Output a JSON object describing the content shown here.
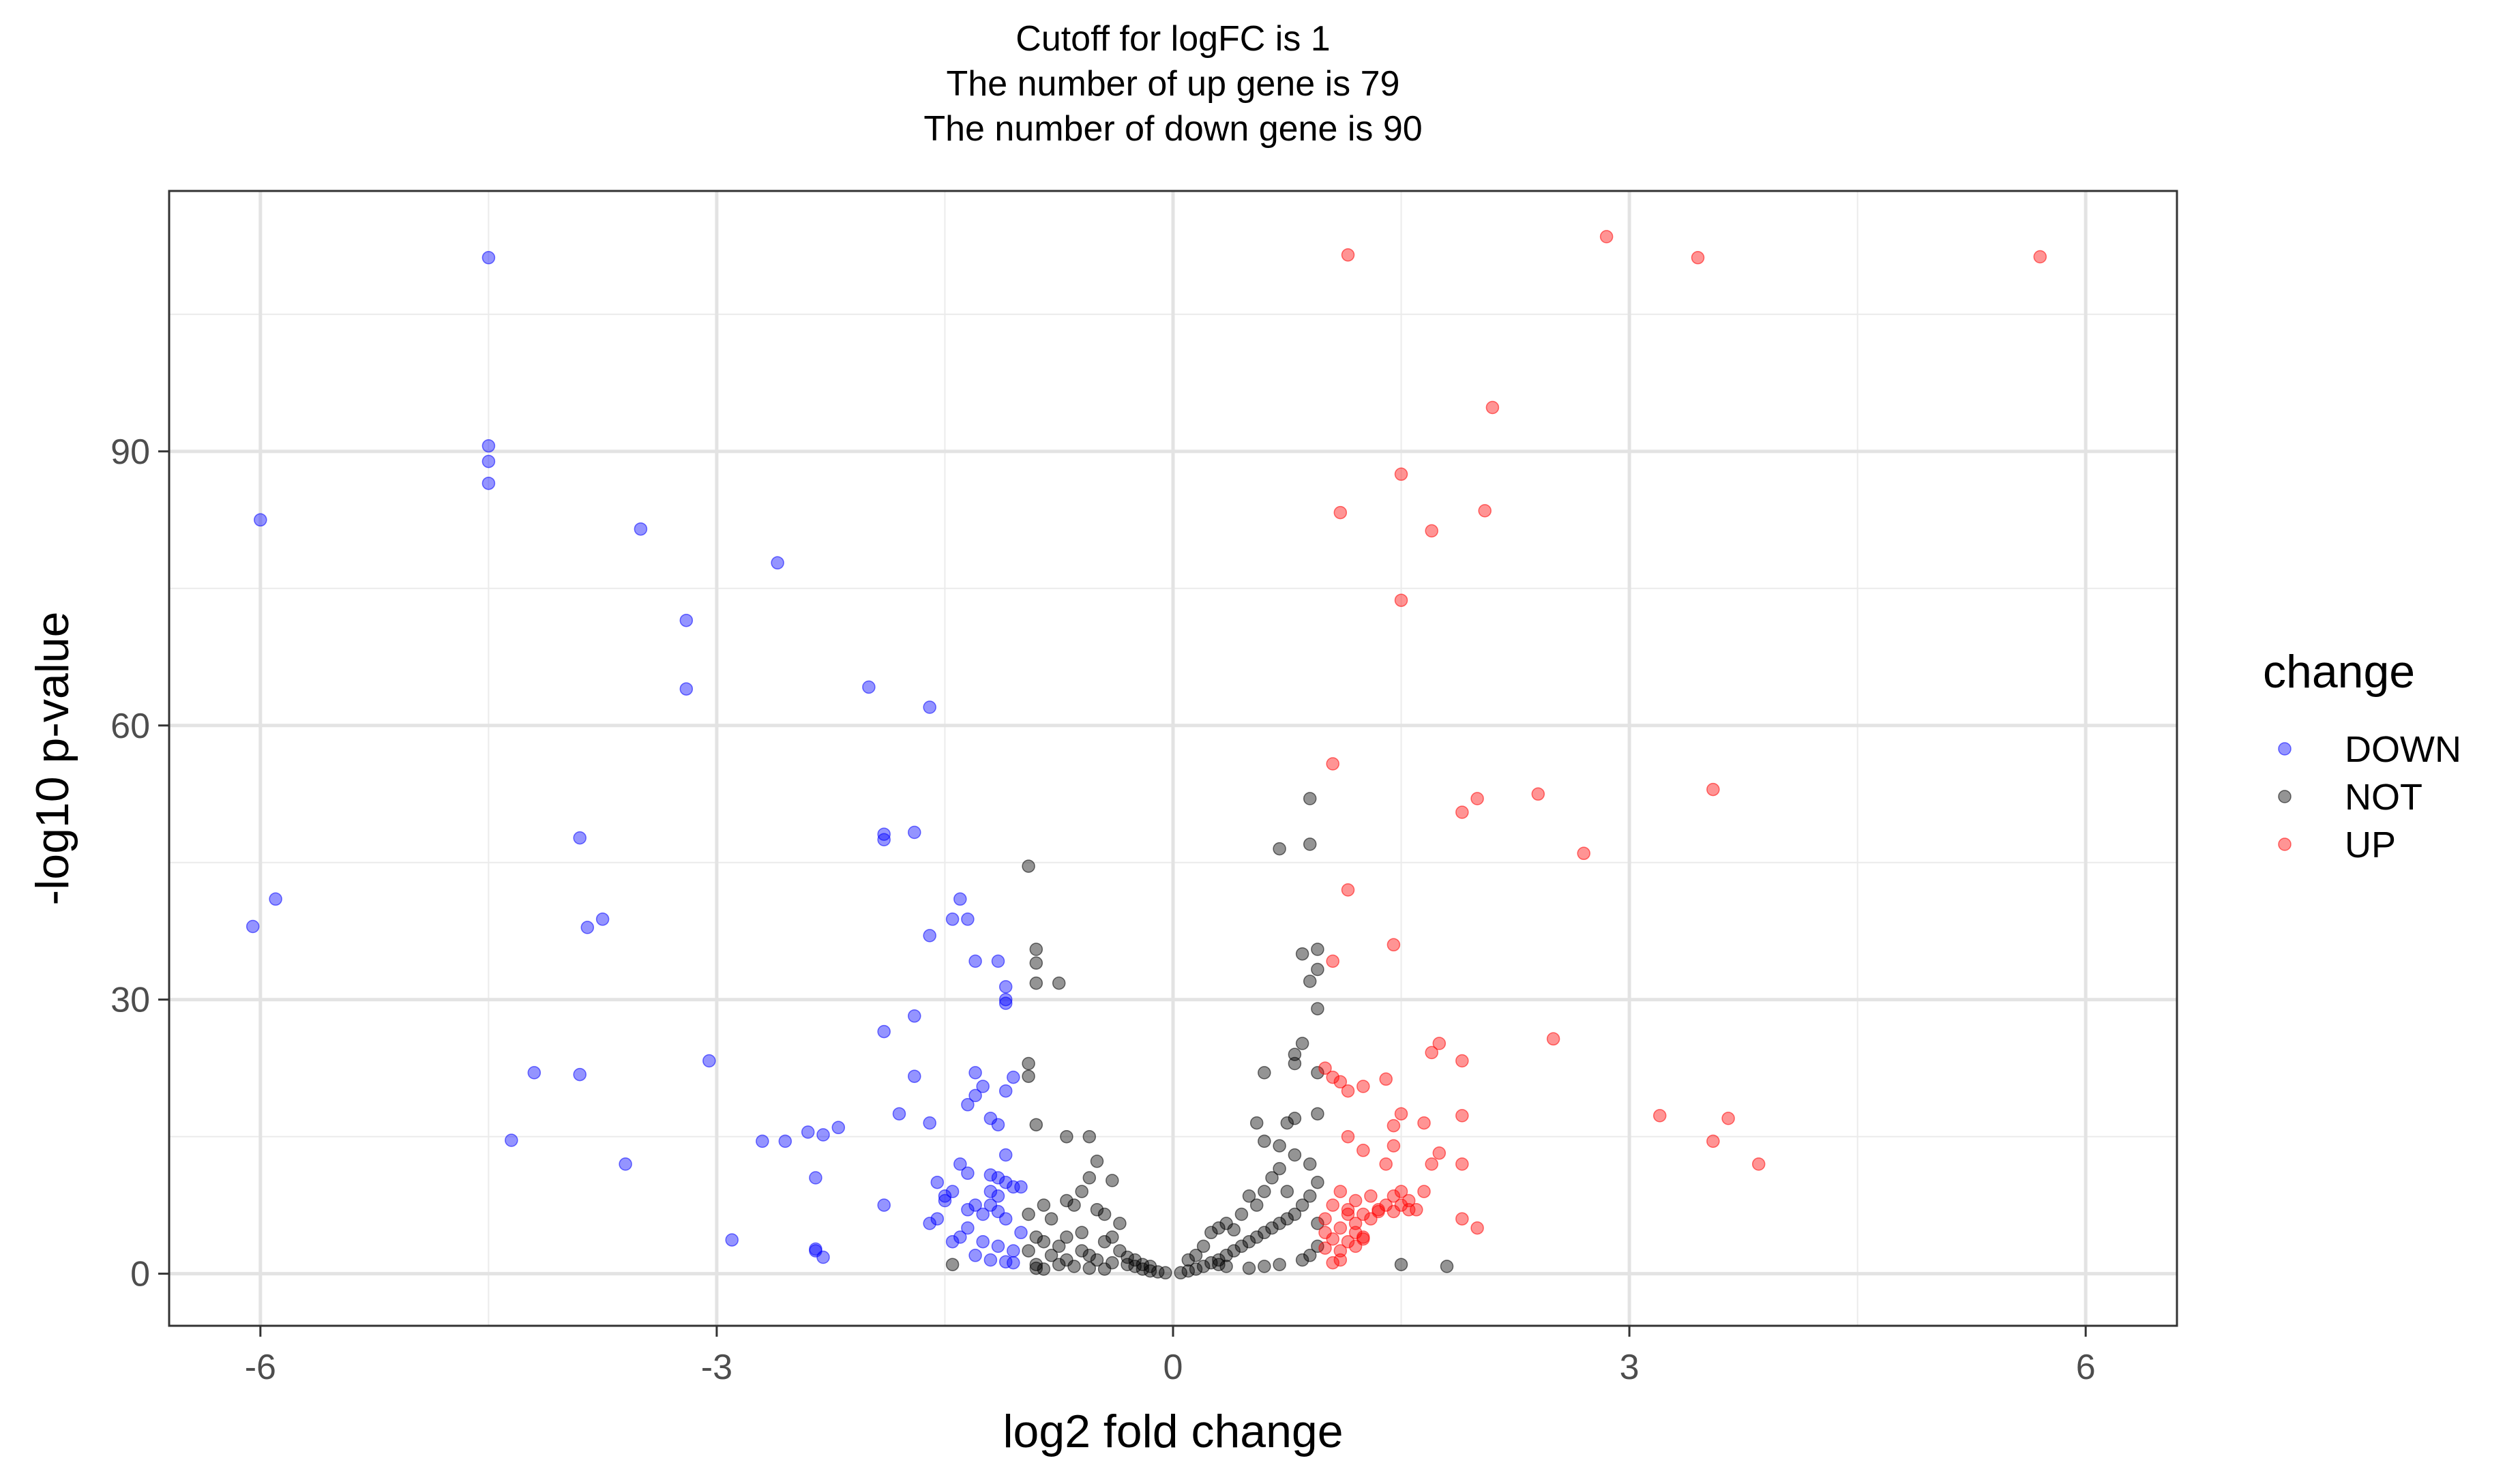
{
  "chart_data": {
    "type": "scatter",
    "title_lines": [
      "Cutoff for logFC is 1",
      "The number of up gene is 79",
      "The number of down gene is 90"
    ],
    "xlabel": "log2 fold change",
    "ylabel": "-log10 p-value",
    "xlim": [
      -6.6,
      6.6
    ],
    "ylim": [
      -5.7,
      118.5
    ],
    "xticks": [
      -6,
      -3,
      0,
      3,
      6
    ],
    "xtick_labels": [
      "-6",
      "-3",
      "0",
      "3",
      "6"
    ],
    "yticks": [
      0,
      30,
      60,
      90
    ],
    "ytick_labels": [
      "0",
      "30",
      "60",
      "90"
    ],
    "grid": true,
    "legend": {
      "title": "change",
      "position": "right",
      "entries": [
        "DOWN",
        "NOT",
        "UP"
      ]
    },
    "colors": {
      "DOWN": "#0000ff",
      "NOT": "#000000",
      "UP": "#ff0000"
    },
    "series": [
      {
        "name": "DOWN",
        "points": [
          [
            -4.5,
            111.2
          ],
          [
            -4.5,
            90.6
          ],
          [
            -4.5,
            88.9
          ],
          [
            -4.5,
            86.5
          ],
          [
            -6.0,
            82.5
          ],
          [
            -3.5,
            81.5
          ],
          [
            -2.6,
            77.8
          ],
          [
            -3.2,
            71.5
          ],
          [
            -3.2,
            64.0
          ],
          [
            -2.0,
            64.2
          ],
          [
            -1.6,
            62.0
          ],
          [
            -1.9,
            48.1
          ],
          [
            -1.9,
            47.5
          ],
          [
            -1.7,
            48.3
          ],
          [
            -3.9,
            47.7
          ],
          [
            -5.9,
            41.0
          ],
          [
            -6.05,
            38.0
          ],
          [
            -3.75,
            38.8
          ],
          [
            -3.85,
            37.9
          ],
          [
            -1.4,
            41.0
          ],
          [
            -1.45,
            38.8
          ],
          [
            -1.35,
            38.8
          ],
          [
            -1.6,
            37.0
          ],
          [
            -1.3,
            34.2
          ],
          [
            -1.15,
            34.2
          ],
          [
            -1.1,
            31.4
          ],
          [
            -1.1,
            30.0
          ],
          [
            -1.1,
            29.6
          ],
          [
            -1.7,
            28.2
          ],
          [
            -1.9,
            26.5
          ],
          [
            -3.05,
            23.3
          ],
          [
            -4.2,
            22.0
          ],
          [
            -3.9,
            21.8
          ],
          [
            -1.3,
            22.0
          ],
          [
            -1.7,
            21.6
          ],
          [
            -1.25,
            20.5
          ],
          [
            -1.05,
            21.5
          ],
          [
            -1.1,
            20.0
          ],
          [
            -1.3,
            19.5
          ],
          [
            -1.35,
            18.5
          ],
          [
            -1.2,
            17.0
          ],
          [
            -1.15,
            16.3
          ],
          [
            -1.6,
            16.5
          ],
          [
            -1.8,
            17.5
          ],
          [
            -2.2,
            16.0
          ],
          [
            -2.3,
            15.2
          ],
          [
            -2.4,
            15.5
          ],
          [
            -2.55,
            14.5
          ],
          [
            -2.7,
            14.5
          ],
          [
            -4.35,
            14.6
          ],
          [
            -3.6,
            12.0
          ],
          [
            -2.35,
            10.5
          ],
          [
            -1.55,
            10.0
          ],
          [
            -1.45,
            9.0
          ],
          [
            -1.5,
            8.0
          ],
          [
            -1.35,
            11.0
          ],
          [
            -1.2,
            10.8
          ],
          [
            -1.15,
            10.5
          ],
          [
            -1.1,
            10.0
          ],
          [
            -1.05,
            9.5
          ],
          [
            -1.0,
            9.5
          ],
          [
            -1.15,
            8.5
          ],
          [
            -1.2,
            7.5
          ],
          [
            -1.15,
            6.8
          ],
          [
            -1.1,
            6.0
          ],
          [
            -1.3,
            7.5
          ],
          [
            -1.25,
            6.5
          ],
          [
            -1.9,
            7.5
          ],
          [
            -1.55,
            6.0
          ],
          [
            -1.6,
            5.5
          ],
          [
            -1.4,
            4.0
          ],
          [
            -1.25,
            3.5
          ],
          [
            -1.15,
            3.0
          ],
          [
            -1.05,
            2.5
          ],
          [
            -1.3,
            2.0
          ],
          [
            -1.2,
            1.5
          ],
          [
            -1.1,
            1.3
          ],
          [
            -2.3,
            1.8
          ],
          [
            -2.35,
            2.5
          ],
          [
            -2.35,
            2.7
          ],
          [
            -2.9,
            3.7
          ],
          [
            -1.0,
            4.5
          ],
          [
            -1.35,
            5.0
          ],
          [
            -1.45,
            3.5
          ],
          [
            -1.05,
            1.2
          ],
          [
            -1.1,
            13.0
          ],
          [
            -1.4,
            12.0
          ],
          [
            -1.5,
            8.5
          ],
          [
            -1.2,
            9.0
          ],
          [
            -1.35,
            7.0
          ]
        ]
      },
      {
        "name": "NOT",
        "points": [
          [
            -0.95,
            44.6
          ],
          [
            -0.9,
            35.5
          ],
          [
            -0.9,
            34.0
          ],
          [
            -0.9,
            31.8
          ],
          [
            -0.75,
            31.8
          ],
          [
            -0.95,
            23.0
          ],
          [
            -0.95,
            21.6
          ],
          [
            -0.9,
            16.3
          ],
          [
            -0.7,
            15.0
          ],
          [
            -0.55,
            15.0
          ],
          [
            -0.5,
            12.3
          ],
          [
            -0.55,
            10.5
          ],
          [
            -0.4,
            10.2
          ],
          [
            -0.6,
            9.0
          ],
          [
            -0.7,
            8.0
          ],
          [
            -0.85,
            7.5
          ],
          [
            -0.95,
            6.5
          ],
          [
            -0.8,
            6.0
          ],
          [
            -0.65,
            7.5
          ],
          [
            -0.5,
            7.0
          ],
          [
            -0.45,
            6.5
          ],
          [
            -0.35,
            5.5
          ],
          [
            -0.9,
            4.0
          ],
          [
            -0.85,
            3.5
          ],
          [
            -0.75,
            3.0
          ],
          [
            -0.6,
            2.5
          ],
          [
            -0.55,
            2.0
          ],
          [
            -0.5,
            1.5
          ],
          [
            -0.4,
            1.2
          ],
          [
            -0.3,
            1.0
          ],
          [
            -0.25,
            0.8
          ],
          [
            -0.2,
            0.5
          ],
          [
            -0.15,
            0.3
          ],
          [
            -0.1,
            0.2
          ],
          [
            -0.05,
            0.1
          ],
          [
            -0.7,
            1.5
          ],
          [
            -0.8,
            2.0
          ],
          [
            -0.9,
            1.0
          ],
          [
            -0.95,
            2.5
          ],
          [
            -0.45,
            3.5
          ],
          [
            -0.35,
            2.5
          ],
          [
            -0.3,
            1.8
          ],
          [
            -0.25,
            1.5
          ],
          [
            -0.2,
            1.0
          ],
          [
            -0.15,
            0.8
          ],
          [
            -0.6,
            4.5
          ],
          [
            -0.7,
            4.0
          ],
          [
            -0.4,
            4.0
          ],
          [
            -0.65,
            0.8
          ],
          [
            -0.75,
            1.0
          ],
          [
            -1.45,
            1.0
          ],
          [
            -0.9,
            0.6
          ],
          [
            -0.85,
            0.5
          ],
          [
            -0.55,
            0.6
          ],
          [
            -0.45,
            0.5
          ],
          [
            0.05,
            0.1
          ],
          [
            0.1,
            0.3
          ],
          [
            0.15,
            0.5
          ],
          [
            0.2,
            0.8
          ],
          [
            0.25,
            1.2
          ],
          [
            0.3,
            1.5
          ],
          [
            0.35,
            2.0
          ],
          [
            0.4,
            2.5
          ],
          [
            0.45,
            3.0
          ],
          [
            0.5,
            3.5
          ],
          [
            0.55,
            4.0
          ],
          [
            0.6,
            4.5
          ],
          [
            0.65,
            5.0
          ],
          [
            0.7,
            5.5
          ],
          [
            0.75,
            6.0
          ],
          [
            0.8,
            6.5
          ],
          [
            0.85,
            7.5
          ],
          [
            0.9,
            8.5
          ],
          [
            0.95,
            10.0
          ],
          [
            0.9,
            12.0
          ],
          [
            0.8,
            13.0
          ],
          [
            0.7,
            14.0
          ],
          [
            0.6,
            14.5
          ],
          [
            0.55,
            16.5
          ],
          [
            0.75,
            16.5
          ],
          [
            0.8,
            17.0
          ],
          [
            0.95,
            17.5
          ],
          [
            0.8,
            23.0
          ],
          [
            0.8,
            24.0
          ],
          [
            0.85,
            25.2
          ],
          [
            0.95,
            22.0
          ],
          [
            0.6,
            22.0
          ],
          [
            0.95,
            29.0
          ],
          [
            0.9,
            32.0
          ],
          [
            0.95,
            33.3
          ],
          [
            0.85,
            35.0
          ],
          [
            0.95,
            35.5
          ],
          [
            0.7,
            46.5
          ],
          [
            0.9,
            47.0
          ],
          [
            0.9,
            52.0
          ],
          [
            0.3,
            5.0
          ],
          [
            0.25,
            4.5
          ],
          [
            0.4,
            4.8
          ],
          [
            0.5,
            8.5
          ],
          [
            0.6,
            9.0
          ],
          [
            0.65,
            10.5
          ],
          [
            0.7,
            11.5
          ],
          [
            0.45,
            6.5
          ],
          [
            0.35,
            5.5
          ],
          [
            0.2,
            3.0
          ],
          [
            0.15,
            2.0
          ],
          [
            0.1,
            1.5
          ],
          [
            0.95,
            3.0
          ],
          [
            0.9,
            2.0
          ],
          [
            0.85,
            1.5
          ],
          [
            1.5,
            1.0
          ],
          [
            1.8,
            0.8
          ],
          [
            0.7,
            1.0
          ],
          [
            0.6,
            0.8
          ],
          [
            0.5,
            0.6
          ],
          [
            0.95,
            5.5
          ],
          [
            0.55,
            7.5
          ],
          [
            0.75,
            9.0
          ],
          [
            0.3,
            1.0
          ],
          [
            0.35,
            0.8
          ]
        ]
      },
      {
        "name": "UP",
        "points": [
          [
            2.85,
            113.5
          ],
          [
            1.15,
            111.5
          ],
          [
            3.45,
            111.2
          ],
          [
            5.7,
            111.3
          ],
          [
            2.1,
            94.8
          ],
          [
            1.5,
            87.5
          ],
          [
            1.1,
            83.3
          ],
          [
            2.05,
            83.5
          ],
          [
            1.7,
            81.3
          ],
          [
            1.5,
            73.7
          ],
          [
            1.05,
            55.8
          ],
          [
            3.55,
            53.0
          ],
          [
            2.4,
            52.5
          ],
          [
            2.0,
            52.0
          ],
          [
            1.9,
            50.5
          ],
          [
            2.7,
            46.0
          ],
          [
            1.15,
            42.0
          ],
          [
            1.45,
            36.0
          ],
          [
            1.05,
            34.2
          ],
          [
            2.5,
            25.7
          ],
          [
            1.75,
            25.2
          ],
          [
            1.7,
            24.2
          ],
          [
            1.9,
            23.3
          ],
          [
            1.0,
            22.5
          ],
          [
            1.05,
            21.5
          ],
          [
            1.1,
            21.0
          ],
          [
            1.4,
            21.3
          ],
          [
            1.25,
            20.5
          ],
          [
            1.15,
            20.0
          ],
          [
            1.5,
            17.5
          ],
          [
            1.45,
            16.2
          ],
          [
            1.65,
            16.5
          ],
          [
            1.9,
            17.3
          ],
          [
            3.2,
            17.3
          ],
          [
            3.65,
            17.0
          ],
          [
            3.55,
            14.5
          ],
          [
            3.85,
            12.0
          ],
          [
            1.15,
            15.0
          ],
          [
            1.25,
            13.5
          ],
          [
            1.45,
            14.0
          ],
          [
            1.75,
            13.2
          ],
          [
            1.4,
            12.0
          ],
          [
            1.7,
            12.0
          ],
          [
            1.9,
            12.0
          ],
          [
            1.5,
            9.0
          ],
          [
            1.45,
            8.5
          ],
          [
            1.1,
            9.0
          ],
          [
            1.2,
            8.0
          ],
          [
            1.05,
            7.5
          ],
          [
            1.15,
            7.0
          ],
          [
            1.25,
            6.5
          ],
          [
            1.3,
            6.0
          ],
          [
            1.35,
            7.0
          ],
          [
            1.4,
            7.5
          ],
          [
            1.5,
            7.5
          ],
          [
            1.55,
            8.0
          ],
          [
            1.6,
            7.0
          ],
          [
            1.65,
            9.0
          ],
          [
            1.2,
            5.5
          ],
          [
            1.1,
            5.0
          ],
          [
            1.0,
            4.5
          ],
          [
            1.05,
            3.8
          ],
          [
            1.15,
            3.5
          ],
          [
            1.25,
            4.0
          ],
          [
            1.0,
            2.8
          ],
          [
            1.1,
            2.5
          ],
          [
            1.2,
            3.0
          ],
          [
            1.25,
            3.8
          ],
          [
            1.1,
            1.5
          ],
          [
            1.05,
            1.2
          ],
          [
            1.9,
            6.0
          ],
          [
            2.0,
            5.0
          ],
          [
            1.35,
            6.8
          ],
          [
            1.45,
            6.8
          ],
          [
            1.55,
            7.0
          ],
          [
            1.0,
            6.0
          ],
          [
            1.3,
            8.5
          ],
          [
            1.15,
            6.5
          ],
          [
            1.2,
            4.5
          ]
        ]
      }
    ]
  }
}
